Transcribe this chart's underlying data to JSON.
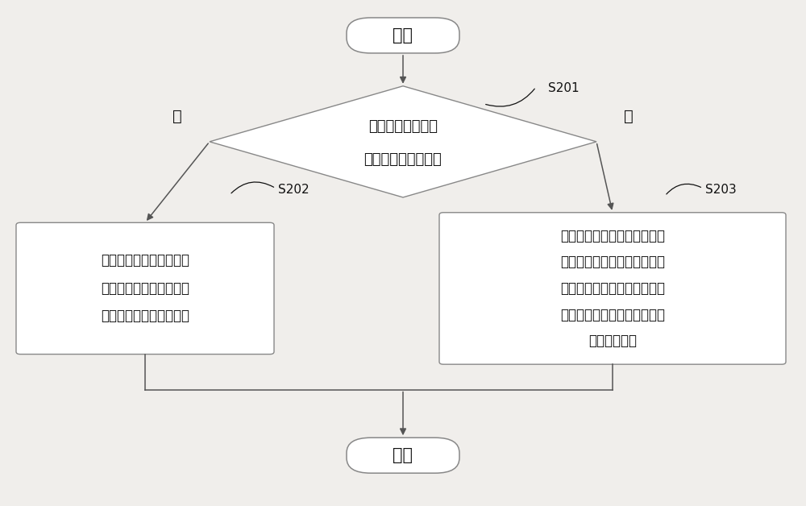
{
  "bg_color": "#f0eeeb",
  "box_color": "#ffffff",
  "box_edge_color": "#888888",
  "arrow_color": "#555555",
  "text_color": "#111111",
  "font_size": 14,
  "start_end_label": [
    "开始",
    "结束"
  ],
  "diamond_line1": "判断下行链路的信",
  "diamond_line2": "道是否处于良好状态",
  "left_box_lines": [
    "选择正交发射组合，并根",
    "据正交发射组合通过控制",
    "电路调整可控负载的电抗"
  ],
  "right_box_lines": [
    "选择相关发射组合，并根据相",
    "关发射组合通过控制电路调整",
    "可控负载的电阵，以及根据发",
    "射波束成型向量调整主动天线",
    "的发射方向图"
  ],
  "yes_label": "是",
  "no_label": "否",
  "s201_label": "S201",
  "s202_label": "S202",
  "s203_label": "S203"
}
